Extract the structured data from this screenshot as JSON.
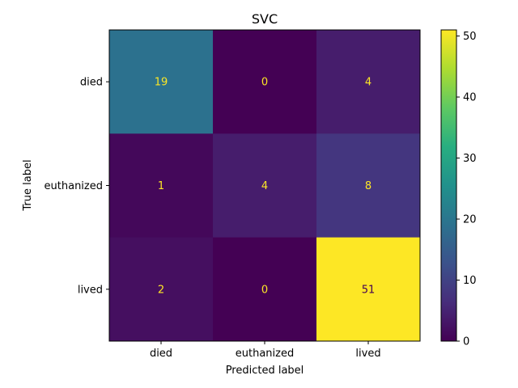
{
  "chart_data": {
    "type": "heatmap",
    "title": "SVC",
    "xlabel": "Predicted label",
    "ylabel": "True label",
    "x_categories": [
      "died",
      "euthanized",
      "lived"
    ],
    "y_categories": [
      "died",
      "euthanized",
      "lived"
    ],
    "values": [
      [
        19,
        0,
        4
      ],
      [
        1,
        4,
        8
      ],
      [
        2,
        0,
        51
      ]
    ],
    "colormap": "viridis",
    "colorbar": {
      "range": [
        0,
        51
      ],
      "ticks": [
        "0",
        "10",
        "20",
        "30",
        "40",
        "50"
      ]
    },
    "annotation_colors": {
      "on_dark": "#fde725",
      "on_light": "#440154"
    },
    "grid": false
  }
}
